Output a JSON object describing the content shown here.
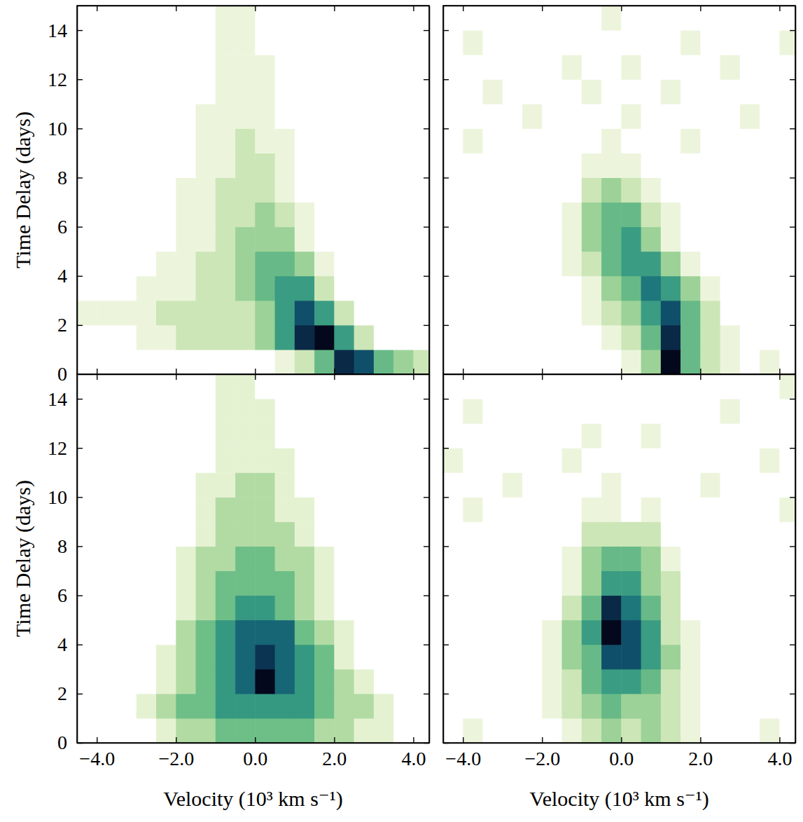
{
  "chart_data": [
    {
      "type": "heatmap",
      "ylabel": "Time Delay (days)",
      "xlim": [
        -4.5,
        4.4
      ],
      "ylim": [
        0,
        15
      ],
      "xticks": [
        -4,
        -2,
        0,
        2,
        4
      ],
      "yticks": [
        0,
        2,
        4,
        6,
        8,
        10,
        12,
        14
      ],
      "tick_labels": "y",
      "x_bins": [
        -4.5,
        -4,
        -3.5,
        -3,
        -2.5,
        -2,
        -1.5,
        -1,
        -0.5,
        0,
        0.5,
        1,
        1.5,
        2,
        2.5,
        3,
        3.5,
        4,
        4.5
      ],
      "y_bins": [
        0,
        1,
        2,
        3,
        4,
        5,
        6,
        7,
        8,
        9,
        10,
        11,
        12,
        13,
        14,
        15
      ],
      "cells": [
        [
          0,
          0,
          0,
          0,
          0,
          0,
          0,
          0,
          0,
          0,
          1,
          2,
          4,
          8,
          7,
          4,
          3,
          2
        ],
        [
          0,
          0,
          0,
          1,
          1,
          2,
          2,
          2,
          2,
          3,
          5,
          8,
          9,
          5,
          2,
          0,
          0,
          0
        ],
        [
          1,
          1,
          1,
          1,
          2,
          2,
          2,
          2,
          2,
          3,
          5,
          7,
          5,
          2,
          0,
          0,
          0,
          0
        ],
        [
          0,
          0,
          0,
          1,
          1,
          1,
          2,
          2,
          3,
          4,
          5,
          5,
          2,
          0,
          0,
          0,
          0,
          0
        ],
        [
          0,
          0,
          0,
          0,
          1,
          1,
          2,
          2,
          3,
          4,
          4,
          3,
          1,
          0,
          0,
          0,
          0,
          0
        ],
        [
          0,
          0,
          0,
          0,
          0,
          1,
          1,
          2,
          3,
          3,
          3,
          1,
          0,
          0,
          0,
          0,
          0,
          0
        ],
        [
          0,
          0,
          0,
          0,
          0,
          1,
          1,
          2,
          2,
          3,
          2,
          1,
          0,
          0,
          0,
          0,
          0,
          0
        ],
        [
          0,
          0,
          0,
          0,
          0,
          1,
          1,
          2,
          2,
          2,
          1,
          0,
          0,
          0,
          0,
          0,
          0,
          0
        ],
        [
          0,
          0,
          0,
          0,
          0,
          0,
          1,
          1,
          2,
          2,
          1,
          0,
          0,
          0,
          0,
          0,
          0,
          0
        ],
        [
          0,
          0,
          0,
          0,
          0,
          0,
          1,
          1,
          2,
          1,
          1,
          0,
          0,
          0,
          0,
          0,
          0,
          0
        ],
        [
          0,
          0,
          0,
          0,
          0,
          0,
          1,
          1,
          1,
          1,
          0,
          0,
          0,
          0,
          0,
          0,
          0,
          0
        ],
        [
          0,
          0,
          0,
          0,
          0,
          0,
          0,
          1,
          1,
          1,
          0,
          0,
          0,
          0,
          0,
          0,
          0,
          0
        ],
        [
          0,
          0,
          0,
          0,
          0,
          0,
          0,
          1,
          1,
          1,
          0,
          0,
          0,
          0,
          0,
          0,
          0,
          0
        ],
        [
          0,
          0,
          0,
          0,
          0,
          0,
          0,
          1,
          1,
          0,
          0,
          0,
          0,
          0,
          0,
          0,
          0,
          0
        ],
        [
          0,
          0,
          0,
          0,
          0,
          0,
          0,
          1,
          1,
          0,
          0,
          0,
          0,
          0,
          0,
          0,
          0,
          0
        ]
      ]
    },
    {
      "type": "heatmap",
      "xlim": [
        -4.5,
        4.4
      ],
      "ylim": [
        0,
        15
      ],
      "xticks": [
        -4,
        -2,
        0,
        2,
        4
      ],
      "yticks": [
        0,
        2,
        4,
        6,
        8,
        10,
        12,
        14
      ],
      "tick_labels": false,
      "x_bins": [
        -4.5,
        -4,
        -3.5,
        -3,
        -2.5,
        -2,
        -1.5,
        -1,
        -0.5,
        0,
        0.5,
        1,
        1.5,
        2,
        2.5,
        3,
        3.5,
        4,
        4.5
      ],
      "y_bins": [
        0,
        1,
        2,
        3,
        4,
        5,
        6,
        7,
        8,
        9,
        10,
        11,
        12,
        13,
        14,
        15
      ],
      "cells": [
        [
          0,
          0,
          0,
          0,
          0,
          0,
          0,
          0,
          0,
          1,
          3,
          9,
          4,
          2,
          1,
          0,
          1,
          0
        ],
        [
          0,
          0,
          0,
          0,
          0,
          0,
          0,
          0,
          1,
          2,
          4,
          8,
          4,
          2,
          1,
          0,
          0,
          0
        ],
        [
          0,
          0,
          0,
          0,
          0,
          0,
          0,
          1,
          2,
          3,
          5,
          7,
          4,
          2,
          0,
          0,
          0,
          0
        ],
        [
          0,
          0,
          0,
          0,
          0,
          0,
          0,
          1,
          3,
          4,
          6,
          5,
          3,
          1,
          0,
          0,
          0,
          0
        ],
        [
          0,
          0,
          0,
          0,
          0,
          0,
          1,
          2,
          4,
          5,
          5,
          3,
          1,
          0,
          0,
          0,
          0,
          0
        ],
        [
          0,
          0,
          0,
          0,
          0,
          0,
          1,
          3,
          4,
          5,
          3,
          1,
          0,
          0,
          0,
          0,
          0,
          0
        ],
        [
          0,
          0,
          0,
          0,
          0,
          0,
          1,
          3,
          4,
          4,
          2,
          1,
          0,
          0,
          0,
          0,
          0,
          0
        ],
        [
          0,
          0,
          0,
          0,
          0,
          0,
          0,
          2,
          3,
          2,
          1,
          0,
          0,
          0,
          0,
          0,
          0,
          0
        ],
        [
          0,
          0,
          0,
          0,
          0,
          0,
          0,
          1,
          1,
          1,
          0,
          0,
          0,
          0,
          0,
          0,
          0,
          0
        ],
        [
          0,
          1,
          0,
          0,
          0,
          0,
          0,
          0,
          1,
          0,
          0,
          0,
          1,
          0,
          0,
          0,
          0,
          0
        ],
        [
          0,
          0,
          0,
          0,
          1,
          0,
          0,
          0,
          0,
          1,
          0,
          0,
          0,
          0,
          0,
          1,
          0,
          0
        ],
        [
          0,
          0,
          1,
          0,
          0,
          0,
          0,
          1,
          0,
          0,
          0,
          1,
          0,
          0,
          0,
          0,
          0,
          0
        ],
        [
          0,
          0,
          0,
          0,
          0,
          0,
          1,
          0,
          0,
          1,
          0,
          0,
          0,
          0,
          1,
          0,
          0,
          0
        ],
        [
          0,
          1,
          0,
          0,
          0,
          0,
          0,
          0,
          0,
          0,
          0,
          0,
          1,
          0,
          0,
          0,
          0,
          1
        ],
        [
          0,
          0,
          0,
          0,
          0,
          0,
          0,
          0,
          1,
          0,
          0,
          0,
          0,
          0,
          0,
          0,
          0,
          0
        ]
      ]
    },
    {
      "type": "heatmap",
      "xlabel": "Velocity (10³ km s⁻¹)",
      "ylabel": "Time Delay (days)",
      "xlim": [
        -4.5,
        4.4
      ],
      "ylim": [
        0,
        15
      ],
      "xticks": [
        {
          "value": -4,
          "label": "−4.0"
        },
        {
          "value": -2,
          "label": "−2.0"
        },
        {
          "value": 0,
          "label": "0.0"
        },
        {
          "value": 2,
          "label": "2.0"
        },
        {
          "value": 4,
          "label": "4.0"
        }
      ],
      "yticks": [
        0,
        2,
        4,
        6,
        8,
        10,
        12,
        14
      ],
      "tick_labels": true,
      "x_bins": [
        -4.5,
        -4,
        -3.5,
        -3,
        -2.5,
        -2,
        -1.5,
        -1,
        -0.5,
        0,
        0.5,
        1,
        1.5,
        2,
        2.5,
        3,
        3.5,
        4,
        4.5
      ],
      "y_bins": [
        0,
        1,
        2,
        3,
        4,
        5,
        6,
        7,
        8,
        9,
        10,
        11,
        12,
        13,
        14,
        15
      ],
      "cells": [
        [
          0,
          0,
          0,
          0,
          1,
          2,
          2,
          3,
          3,
          3,
          3,
          3,
          2,
          2,
          1,
          1,
          0,
          0
        ],
        [
          0,
          0,
          0,
          1,
          2,
          3,
          3,
          4,
          4,
          4,
          4,
          4,
          3,
          2,
          2,
          1,
          0,
          0
        ],
        [
          0,
          0,
          0,
          0,
          1,
          2,
          3,
          4,
          5,
          7,
          5,
          4,
          3,
          2,
          1,
          0,
          0,
          0
        ],
        [
          0,
          0,
          0,
          0,
          1,
          2,
          3,
          4,
          5,
          6,
          5,
          4,
          3,
          1,
          0,
          0,
          0,
          0
        ],
        [
          0,
          0,
          0,
          0,
          0,
          2,
          3,
          4,
          5,
          5,
          5,
          3,
          2,
          1,
          0,
          0,
          0,
          0
        ],
        [
          0,
          0,
          0,
          0,
          0,
          1,
          2,
          3,
          4,
          4,
          3,
          2,
          1,
          0,
          0,
          0,
          0,
          0
        ],
        [
          0,
          0,
          0,
          0,
          0,
          1,
          2,
          3,
          3,
          3,
          3,
          2,
          1,
          0,
          0,
          0,
          0,
          0
        ],
        [
          0,
          0,
          0,
          0,
          0,
          1,
          2,
          2,
          3,
          3,
          2,
          2,
          1,
          0,
          0,
          0,
          0,
          0
        ],
        [
          0,
          0,
          0,
          0,
          0,
          0,
          1,
          2,
          2,
          2,
          2,
          1,
          0,
          0,
          0,
          0,
          0,
          0
        ],
        [
          0,
          0,
          0,
          0,
          0,
          0,
          1,
          2,
          2,
          2,
          1,
          1,
          0,
          0,
          0,
          0,
          0,
          0
        ],
        [
          0,
          0,
          0,
          0,
          0,
          0,
          1,
          1,
          2,
          2,
          1,
          0,
          0,
          0,
          0,
          0,
          0,
          0
        ],
        [
          0,
          0,
          0,
          0,
          0,
          0,
          0,
          1,
          1,
          1,
          1,
          0,
          0,
          0,
          0,
          0,
          0,
          0
        ],
        [
          0,
          0,
          0,
          0,
          0,
          0,
          0,
          1,
          1,
          1,
          0,
          0,
          0,
          0,
          0,
          0,
          0,
          0
        ],
        [
          0,
          0,
          0,
          0,
          0,
          0,
          0,
          1,
          1,
          1,
          0,
          0,
          0,
          0,
          0,
          0,
          0,
          0
        ],
        [
          0,
          0,
          0,
          0,
          0,
          0,
          0,
          1,
          1,
          0,
          0,
          0,
          0,
          0,
          0,
          0,
          0,
          0
        ]
      ]
    },
    {
      "type": "heatmap",
      "xlabel": "Velocity (10³ km s⁻¹)",
      "xlim": [
        -4.5,
        4.4
      ],
      "ylim": [
        0,
        15
      ],
      "xticks": [
        {
          "value": -4,
          "label": "−4.0"
        },
        {
          "value": -2,
          "label": "−2.0"
        },
        {
          "value": 0,
          "label": "0.0"
        },
        {
          "value": 2,
          "label": "2.0"
        },
        {
          "value": 4,
          "label": "4.0"
        }
      ],
      "yticks": [
        0,
        2,
        4,
        6,
        8,
        10,
        12,
        14
      ],
      "tick_labels": "x",
      "x_bins": [
        -4.5,
        -4,
        -3.5,
        -3,
        -2.5,
        -2,
        -1.5,
        -1,
        -0.5,
        0,
        0.5,
        1,
        1.5,
        2,
        2.5,
        3,
        3.5,
        4,
        4.5
      ],
      "y_bins": [
        0,
        1,
        2,
        3,
        4,
        5,
        6,
        7,
        8,
        9,
        10,
        11,
        12,
        13,
        14,
        15
      ],
      "cells": [
        [
          0,
          1,
          0,
          0,
          0,
          0,
          1,
          2,
          3,
          2,
          3,
          2,
          1,
          0,
          0,
          0,
          1,
          0
        ],
        [
          0,
          0,
          0,
          0,
          0,
          1,
          2,
          3,
          4,
          3,
          3,
          2,
          1,
          0,
          0,
          0,
          0,
          0
        ],
        [
          0,
          0,
          0,
          0,
          0,
          1,
          2,
          4,
          5,
          5,
          4,
          2,
          1,
          0,
          0,
          0,
          0,
          0
        ],
        [
          0,
          0,
          0,
          0,
          0,
          1,
          3,
          4,
          7,
          7,
          5,
          3,
          1,
          0,
          0,
          0,
          0,
          0
        ],
        [
          0,
          0,
          0,
          0,
          0,
          1,
          3,
          5,
          9,
          7,
          5,
          2,
          1,
          0,
          0,
          0,
          0,
          0
        ],
        [
          0,
          0,
          0,
          0,
          0,
          0,
          2,
          4,
          8,
          6,
          4,
          2,
          0,
          0,
          0,
          0,
          0,
          0
        ],
        [
          0,
          0,
          0,
          0,
          0,
          0,
          1,
          3,
          5,
          5,
          3,
          2,
          0,
          0,
          0,
          0,
          0,
          0
        ],
        [
          0,
          0,
          0,
          0,
          0,
          0,
          1,
          3,
          4,
          4,
          3,
          1,
          0,
          0,
          0,
          0,
          0,
          0
        ],
        [
          0,
          0,
          0,
          0,
          0,
          0,
          0,
          2,
          2,
          2,
          2,
          0,
          0,
          0,
          0,
          0,
          0,
          0
        ],
        [
          0,
          1,
          0,
          0,
          0,
          0,
          0,
          1,
          1,
          0,
          1,
          0,
          0,
          0,
          0,
          0,
          0,
          1
        ],
        [
          0,
          0,
          0,
          1,
          0,
          0,
          0,
          0,
          1,
          0,
          0,
          0,
          0,
          1,
          0,
          0,
          0,
          0
        ],
        [
          1,
          0,
          0,
          0,
          0,
          0,
          1,
          0,
          0,
          0,
          0,
          0,
          0,
          0,
          0,
          0,
          1,
          0
        ],
        [
          0,
          0,
          0,
          0,
          0,
          0,
          0,
          1,
          0,
          0,
          1,
          0,
          0,
          0,
          0,
          0,
          0,
          0
        ],
        [
          0,
          1,
          0,
          0,
          0,
          0,
          0,
          0,
          0,
          0,
          0,
          0,
          0,
          0,
          1,
          0,
          0,
          0
        ],
        [
          0,
          0,
          0,
          0,
          0,
          0,
          0,
          0,
          0,
          0,
          0,
          0,
          0,
          0,
          0,
          0,
          0,
          1
        ]
      ]
    }
  ]
}
